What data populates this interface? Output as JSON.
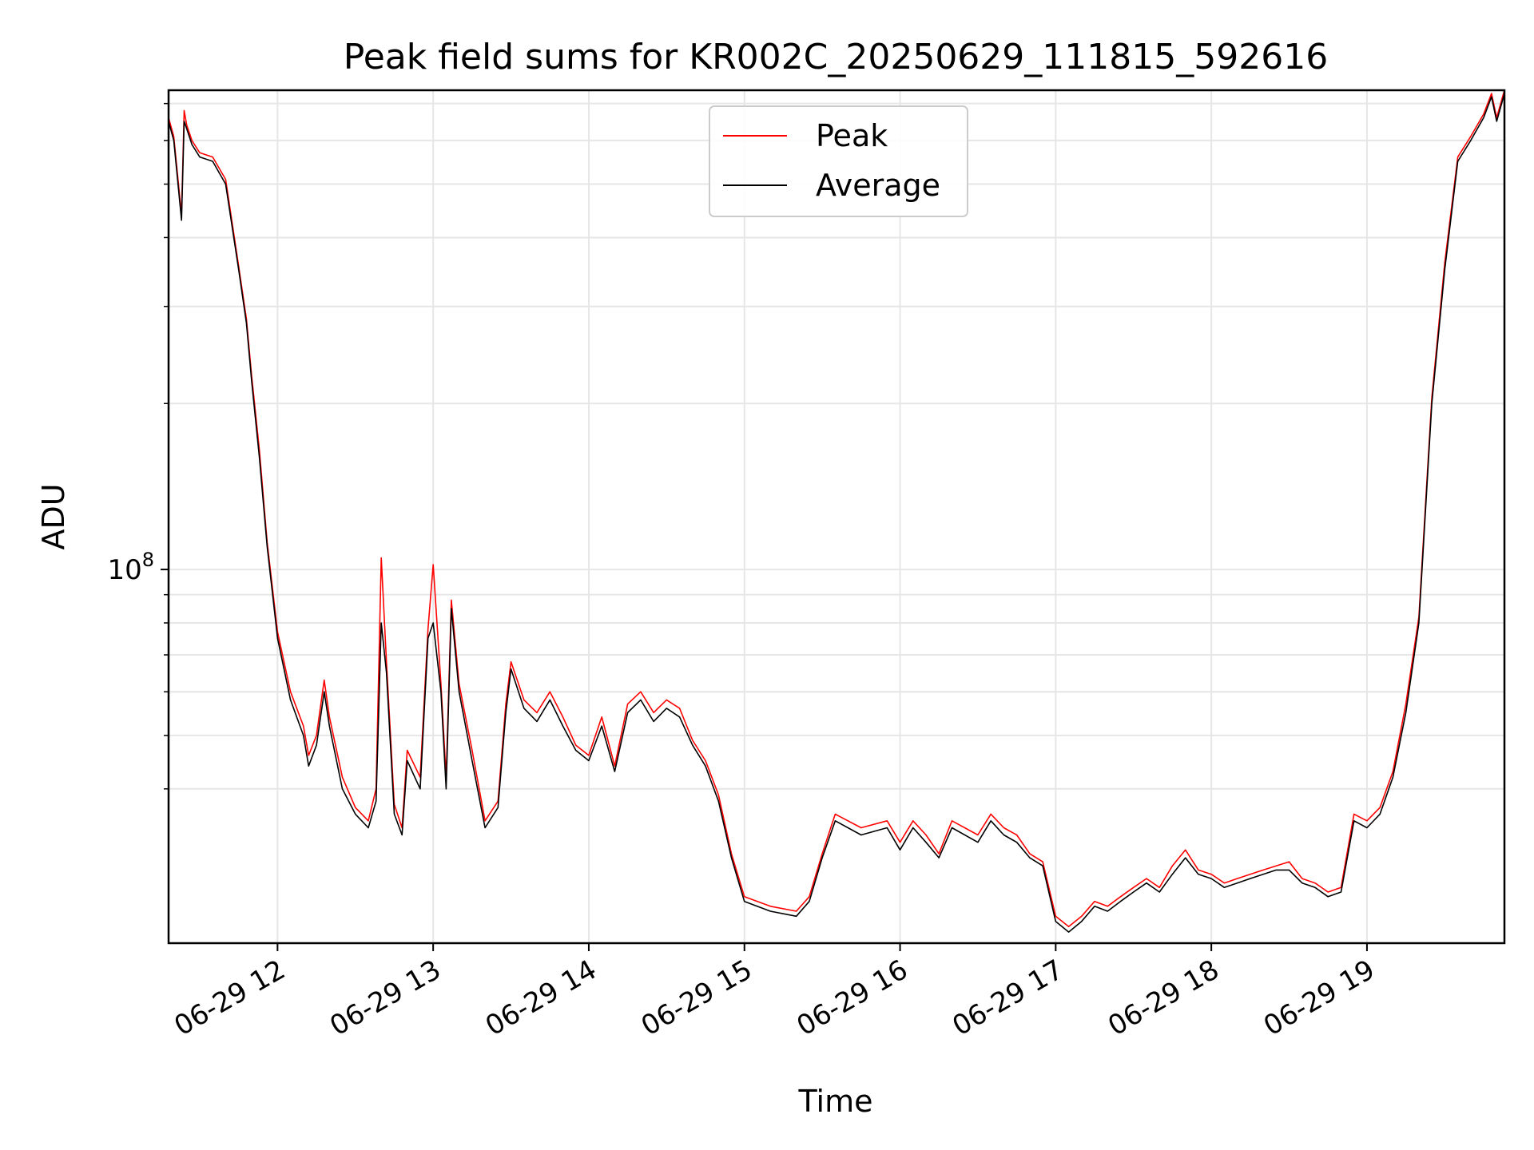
{
  "chart_data": {
    "type": "line",
    "title": "Peak field sums for KR002C_20250629_111815_592616",
    "xlabel": "Time",
    "ylabel": "ADU",
    "y_scale": "log",
    "ylim": [
      21000000,
      740000000
    ],
    "xlim": [
      "2025-06-29 11:18",
      "2025-06-29 19:53"
    ],
    "x_ticks": [
      "06-29 12",
      "06-29 13",
      "06-29 14",
      "06-29 15",
      "06-29 16",
      "06-29 17",
      "06-29 18",
      "06-29 19"
    ],
    "y_tick_major": {
      "value": 100000000,
      "base": "10",
      "exp": "8"
    },
    "y_tick_minor": [
      40000000,
      50000000,
      60000000,
      70000000,
      80000000,
      90000000,
      200000000,
      300000000,
      400000000,
      500000000,
      600000000,
      700000000
    ],
    "grid": true,
    "legend": {
      "placement": "top-center",
      "entries": [
        "Peak",
        "Average"
      ]
    },
    "colors": {
      "Peak": "#ff0000",
      "Average": "#000000"
    },
    "x": [
      "2025-06-29 11:18",
      "2025-06-29 11:20",
      "2025-06-29 11:23",
      "2025-06-29 11:24",
      "2025-06-29 11:25",
      "2025-06-29 11:27",
      "2025-06-29 11:30",
      "2025-06-29 11:35",
      "2025-06-29 11:40",
      "2025-06-29 11:45",
      "2025-06-29 11:48",
      "2025-06-29 11:50",
      "2025-06-29 11:53",
      "2025-06-29 11:56",
      "2025-06-29 12:00",
      "2025-06-29 12:05",
      "2025-06-29 12:10",
      "2025-06-29 12:12",
      "2025-06-29 12:15",
      "2025-06-29 12:18",
      "2025-06-29 12:20",
      "2025-06-29 12:25",
      "2025-06-29 12:30",
      "2025-06-29 12:35",
      "2025-06-29 12:38",
      "2025-06-29 12:40",
      "2025-06-29 12:42",
      "2025-06-29 12:45",
      "2025-06-29 12:48",
      "2025-06-29 12:50",
      "2025-06-29 12:55",
      "2025-06-29 12:58",
      "2025-06-29 13:00",
      "2025-06-29 13:03",
      "2025-06-29 13:05",
      "2025-06-29 13:07",
      "2025-06-29 13:10",
      "2025-06-29 13:15",
      "2025-06-29 13:20",
      "2025-06-29 13:25",
      "2025-06-29 13:28",
      "2025-06-29 13:30",
      "2025-06-29 13:35",
      "2025-06-29 13:40",
      "2025-06-29 13:45",
      "2025-06-29 13:50",
      "2025-06-29 13:55",
      "2025-06-29 14:00",
      "2025-06-29 14:05",
      "2025-06-29 14:10",
      "2025-06-29 14:15",
      "2025-06-29 14:20",
      "2025-06-29 14:25",
      "2025-06-29 14:30",
      "2025-06-29 14:35",
      "2025-06-29 14:40",
      "2025-06-29 14:45",
      "2025-06-29 14:50",
      "2025-06-29 14:55",
      "2025-06-29 15:00",
      "2025-06-29 15:10",
      "2025-06-29 15:20",
      "2025-06-29 15:25",
      "2025-06-29 15:30",
      "2025-06-29 15:35",
      "2025-06-29 15:45",
      "2025-06-29 15:55",
      "2025-06-29 16:00",
      "2025-06-29 16:05",
      "2025-06-29 16:10",
      "2025-06-29 16:15",
      "2025-06-29 16:20",
      "2025-06-29 16:30",
      "2025-06-29 16:35",
      "2025-06-29 16:40",
      "2025-06-29 16:45",
      "2025-06-29 16:50",
      "2025-06-29 16:55",
      "2025-06-29 17:00",
      "2025-06-29 17:05",
      "2025-06-29 17:10",
      "2025-06-29 17:15",
      "2025-06-29 17:20",
      "2025-06-29 17:25",
      "2025-06-29 17:30",
      "2025-06-29 17:35",
      "2025-06-29 17:40",
      "2025-06-29 17:45",
      "2025-06-29 17:50",
      "2025-06-29 17:55",
      "2025-06-29 18:00",
      "2025-06-29 18:05",
      "2025-06-29 18:10",
      "2025-06-29 18:15",
      "2025-06-29 18:20",
      "2025-06-29 18:25",
      "2025-06-29 18:30",
      "2025-06-29 18:35",
      "2025-06-29 18:40",
      "2025-06-29 18:45",
      "2025-06-29 18:50",
      "2025-06-29 18:55",
      "2025-06-29 19:00",
      "2025-06-29 19:05",
      "2025-06-29 19:10",
      "2025-06-29 19:15",
      "2025-06-29 19:20",
      "2025-06-29 19:25",
      "2025-06-29 19:30",
      "2025-06-29 19:35",
      "2025-06-29 19:40",
      "2025-06-29 19:45",
      "2025-06-29 19:48",
      "2025-06-29 19:50",
      "2025-06-29 19:53"
    ],
    "series": [
      {
        "name": "Average",
        "values": [
          650000000,
          600000000,
          430000000,
          650000000,
          630000000,
          590000000,
          560000000,
          550000000,
          500000000,
          350000000,
          280000000,
          220000000,
          160000000,
          110000000,
          75000000,
          58000000,
          50000000,
          44000000,
          48000000,
          60000000,
          52000000,
          40000000,
          36000000,
          34000000,
          38000000,
          80000000,
          65000000,
          36000000,
          33000000,
          45000000,
          40000000,
          75000000,
          80000000,
          60000000,
          40000000,
          85000000,
          60000000,
          45000000,
          34000000,
          37000000,
          55000000,
          66000000,
          56000000,
          53000000,
          58000000,
          52000000,
          47000000,
          45000000,
          52000000,
          43000000,
          55000000,
          58000000,
          53000000,
          56000000,
          54000000,
          48000000,
          44000000,
          38000000,
          30000000,
          25000000,
          24000000,
          23500000,
          25000000,
          30000000,
          35000000,
          33000000,
          34000000,
          31000000,
          34000000,
          32000000,
          30000000,
          34000000,
          32000000,
          35000000,
          33000000,
          32000000,
          30000000,
          29000000,
          23000000,
          22000000,
          23000000,
          24500000,
          24000000,
          25000000,
          26000000,
          27000000,
          26000000,
          28000000,
          30000000,
          28000000,
          27500000,
          26500000,
          27000000,
          27500000,
          28000000,
          28500000,
          28500000,
          27000000,
          26500000,
          25500000,
          26000000,
          35000000,
          34000000,
          36000000,
          42000000,
          55000000,
          80000000,
          200000000,
          350000000,
          550000000,
          600000000,
          660000000,
          720000000,
          650000000,
          730000000
        ]
      },
      {
        "name": "Peak",
        "values": [
          660000000,
          610000000,
          440000000,
          680000000,
          640000000,
          600000000,
          570000000,
          560000000,
          510000000,
          355000000,
          285000000,
          225000000,
          165000000,
          112000000,
          77000000,
          60000000,
          52000000,
          46000000,
          50000000,
          63000000,
          54000000,
          42000000,
          37000000,
          35000000,
          40000000,
          105000000,
          68000000,
          37500000,
          34000000,
          47000000,
          42000000,
          78000000,
          102000000,
          62000000,
          42000000,
          88000000,
          62000000,
          47000000,
          35000000,
          38000000,
          57000000,
          68000000,
          58000000,
          55000000,
          60000000,
          54000000,
          48000000,
          46000000,
          54000000,
          44000000,
          57000000,
          60000000,
          55000000,
          58000000,
          56000000,
          49000000,
          45000000,
          39000000,
          30500000,
          25500000,
          24500000,
          24000000,
          25500000,
          30500000,
          36000000,
          34000000,
          35000000,
          32000000,
          35000000,
          33000000,
          30500000,
          35000000,
          33000000,
          36000000,
          34000000,
          33000000,
          30500000,
          29500000,
          23500000,
          22500000,
          23500000,
          25000000,
          24500000,
          25500000,
          26500000,
          27500000,
          26500000,
          29000000,
          31000000,
          28500000,
          28000000,
          27000000,
          27500000,
          28000000,
          28500000,
          29000000,
          29500000,
          27500000,
          27000000,
          26000000,
          26500000,
          36000000,
          35000000,
          37000000,
          43000000,
          57000000,
          82000000,
          205000000,
          360000000,
          560000000,
          610000000,
          670000000,
          730000000,
          660000000,
          740000000
        ]
      }
    ]
  }
}
